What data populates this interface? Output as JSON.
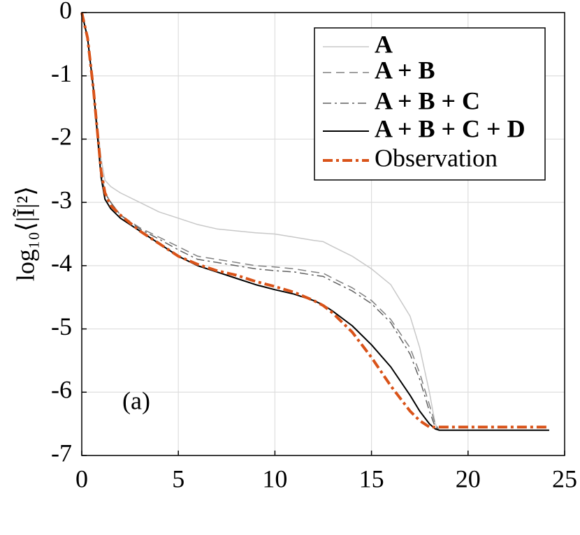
{
  "chart_data": {
    "type": "line",
    "ylabel": "log₁₀⟨|Ĩ|²⟩",
    "annotation": "(a)",
    "x": [
      0,
      0.3,
      0.6,
      1,
      1.2,
      1.5,
      2,
      3,
      4,
      5,
      6,
      7,
      8,
      9,
      10,
      11,
      12,
      12.5,
      13,
      14,
      15,
      16,
      17,
      17.5,
      18,
      18.3,
      18.5,
      19,
      20,
      21,
      22,
      23,
      24,
      24.2
    ],
    "series": [
      {
        "name": "A",
        "color": "#c8c8c8",
        "linestyle": "solid",
        "values": [
          0,
          -0.4,
          -1.2,
          -2.3,
          -2.65,
          -2.75,
          -2.85,
          -3.0,
          -3.15,
          -3.25,
          -3.35,
          -3.42,
          -3.45,
          -3.48,
          -3.5,
          -3.55,
          -3.6,
          -3.62,
          -3.7,
          -3.85,
          -4.05,
          -4.3,
          -4.8,
          -5.3,
          -6.0,
          -6.5,
          -6.6,
          -6.6,
          -6.6,
          -6.6,
          -6.6,
          -6.6,
          -6.6,
          -6.6
        ]
      },
      {
        "name": "A + B",
        "color": "#808080",
        "linestyle": "dashed",
        "values": [
          0,
          -0.4,
          -1.2,
          -2.5,
          -2.85,
          -3.0,
          -3.2,
          -3.4,
          -3.55,
          -3.7,
          -3.85,
          -3.9,
          -3.95,
          -4.0,
          -4.02,
          -4.05,
          -4.1,
          -4.12,
          -4.2,
          -4.35,
          -4.55,
          -4.85,
          -5.3,
          -5.7,
          -6.2,
          -6.5,
          -6.6,
          -6.6,
          -6.6,
          -6.6,
          -6.6,
          -6.6,
          -6.6,
          -6.6
        ]
      },
      {
        "name": "A + B + C",
        "color": "#606060",
        "linestyle": "dashdot",
        "values": [
          0,
          -0.4,
          -1.2,
          -2.5,
          -2.85,
          -3.0,
          -3.2,
          -3.42,
          -3.58,
          -3.75,
          -3.9,
          -3.95,
          -4.0,
          -4.05,
          -4.08,
          -4.1,
          -4.15,
          -4.17,
          -4.25,
          -4.4,
          -4.6,
          -4.9,
          -5.4,
          -5.8,
          -6.3,
          -6.55,
          -6.6,
          -6.6,
          -6.6,
          -6.6,
          -6.6,
          -6.6,
          -6.6,
          -6.6
        ]
      },
      {
        "name": "A + B + C + D",
        "color": "#000000",
        "linestyle": "solid",
        "values": [
          0,
          -0.4,
          -1.2,
          -2.6,
          -2.95,
          -3.1,
          -3.25,
          -3.45,
          -3.65,
          -3.85,
          -4.0,
          -4.1,
          -4.2,
          -4.3,
          -4.38,
          -4.45,
          -4.55,
          -4.62,
          -4.72,
          -4.95,
          -5.25,
          -5.6,
          -6.05,
          -6.3,
          -6.5,
          -6.58,
          -6.6,
          -6.6,
          -6.6,
          -6.6,
          -6.6,
          -6.6,
          -6.6,
          -6.6
        ]
      },
      {
        "name": "Observation",
        "color": "#d95319",
        "linestyle": "dashdot-bold",
        "values": [
          0,
          -0.4,
          -1.2,
          -2.5,
          -2.85,
          -3.05,
          -3.2,
          -3.45,
          -3.65,
          -3.85,
          -3.98,
          -4.08,
          -4.15,
          -4.25,
          -4.33,
          -4.42,
          -4.55,
          -4.63,
          -4.75,
          -5.05,
          -5.45,
          -5.9,
          -6.3,
          -6.45,
          -6.55,
          -6.55,
          -6.55,
          -6.55,
          -6.55,
          -6.55,
          -6.55,
          -6.55,
          -6.55,
          -6.55
        ]
      }
    ],
    "xlim": [
      0,
      25
    ],
    "xticks": [
      0,
      5,
      10,
      15,
      20,
      25
    ],
    "ylim": [
      -7,
      0
    ],
    "yticks": [
      0,
      -1,
      -2,
      -3,
      -4,
      -5,
      -6,
      -7
    ],
    "grid": true,
    "legend": "upper right"
  }
}
